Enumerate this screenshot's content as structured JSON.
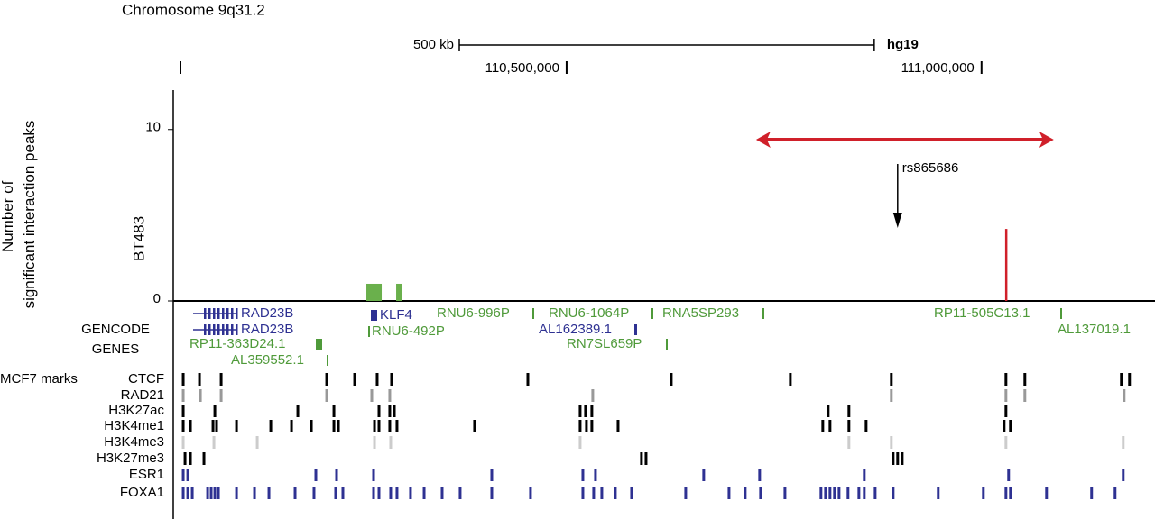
{
  "chart_data": {
    "type": "genome-browser",
    "title": "Chromosome 9q31.2",
    "assembly": "hg19",
    "scale_bar": {
      "length": 500000,
      "label": "500 kb"
    },
    "xlim": [
      110026000,
      111209000
    ],
    "xticks": [
      {
        "value": 110500000,
        "label": "110,500,000"
      },
      {
        "value": 111000000,
        "label": "111,000,000"
      }
    ],
    "y_label": "Number of  significant interaction peaks",
    "sample": "BT483",
    "ylim": [
      0,
      12.3
    ],
    "yticks": [
      0,
      10
    ],
    "peaks": [
      {
        "start": 110258700,
        "end": 110277200,
        "value": 1,
        "color": "#6ab04c"
      },
      {
        "start": 110294600,
        "end": 110301100,
        "value": 1,
        "color": "#6ab04c"
      },
      {
        "start": 111028400,
        "end": 111030400,
        "value": 4.2,
        "color": "#d0202a"
      }
    ],
    "region": {
      "start": 110728300,
      "end": 111087000,
      "color": "#d0202a"
    },
    "snp": {
      "label": "rs865686",
      "position": 110898900
    },
    "gene_track_label": [
      "GENCODE",
      "GENES"
    ],
    "genes": [
      "RAD23B",
      "RAD23B",
      "RP11-363D24.1",
      "AL359552.1",
      "KLF4",
      "RNU6-492P",
      "RNU6-996P",
      "RNU6-1064P",
      "AL162389.1",
      "RNA5SP293",
      "RN7SL659P",
      "RP11-505C13.1",
      "AL137019.1"
    ],
    "marks_label": "MCF7 marks",
    "tracks": [
      {
        "name": "CTCF",
        "color": "#000000",
        "positions": [
          110038000,
          110057600,
          110083700,
          110210900,
          110244600,
          110271700,
          110289100,
          110453300,
          110626100,
          110769600,
          110891300,
          111029400,
          111052200,
          111168500,
          111178300
        ]
      },
      {
        "name": "RAD21",
        "color": "#999999",
        "positions": [
          110038000,
          110058700,
          110083700,
          110210900,
          110265200,
          110286900,
          110531500,
          110891300,
          111029400,
          111052200,
          111171800
        ]
      },
      {
        "name": "H3K27ac",
        "color": "#000000",
        "positions": [
          110038000,
          110076100,
          110176100,
          110219600,
          110273900,
          110286900,
          110292400,
          110516300,
          110522800,
          110530400,
          110815200,
          110840200,
          111029400
        ]
      },
      {
        "name": "H3K4me1",
        "color": "#000000",
        "positions": [
          110038000,
          110046700,
          110073900,
          110078200,
          110102200,
          110143500,
          110168500,
          110192400,
          110219600,
          110225000,
          110268500,
          110273900,
          110286900,
          110295600,
          110389100,
          110516300,
          110523900,
          110530400,
          110562000,
          110808700,
          110817400,
          110840200,
          110860900,
          111027200,
          111034800
        ]
      },
      {
        "name": "H3K4me3",
        "color": "#cccccc",
        "positions": [
          110038000,
          110075000,
          110127200,
          110268500,
          110288000,
          110516300,
          110840200,
          110891300,
          111029400,
          111170700
        ]
      },
      {
        "name": "H3K27me3",
        "color": "#000000",
        "positions": [
          110040200,
          110046700,
          110063000,
          110590200,
          110595700,
          110893500,
          110898900,
          110904400
        ]
      },
      {
        "name": "ESR1",
        "color": "#2e3192",
        "positions": [
          110038000,
          110043500,
          110197800,
          110222800,
          110267400,
          110409800,
          110519600,
          110534800,
          110665200,
          110732600,
          110858700,
          111032600,
          111170700
        ]
      },
      {
        "name": "FOXA1",
        "color": "#2e3192",
        "positions": [
          110038000,
          110043500,
          110048900,
          110067400,
          110071700,
          110076100,
          110080400,
          110102200,
          110123900,
          110141300,
          110172800,
          110195600,
          110221700,
          110230400,
          110267400,
          110273900,
          110288000,
          110295600,
          110311900,
          110328300,
          110350000,
          110371700,
          110409800,
          110456500,
          110519600,
          110532600,
          110542400,
          110558700,
          110578300,
          110643500,
          110695700,
          110715200,
          110733700,
          110763100,
          110806500,
          110812000,
          110817400,
          110822800,
          110828300,
          110839100,
          110852200,
          110858700,
          110871800,
          110893500,
          110947800,
          111002200,
          111029400,
          111034800,
          111078300,
          111132600,
          111160900
        ]
      }
    ]
  }
}
